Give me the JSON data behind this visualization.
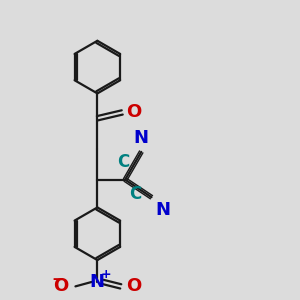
{
  "bg_color": "#dcdcdc",
  "bond_color": "#1a1a1a",
  "bond_width": 1.6,
  "atom_colors": {
    "C": "#008080",
    "N": "#0000cc",
    "O": "#cc0000"
  },
  "font_size": 12
}
